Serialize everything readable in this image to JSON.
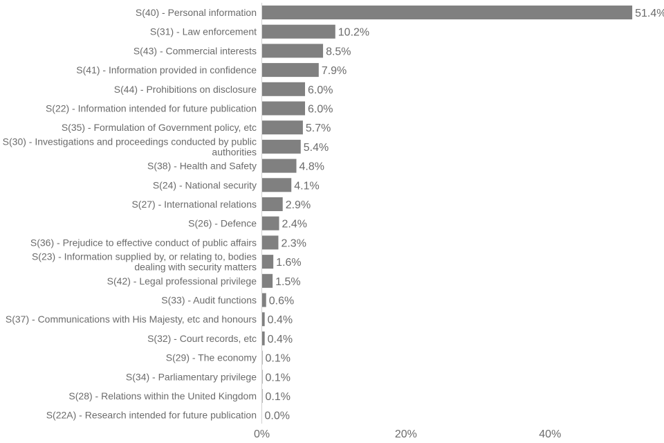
{
  "chart_data": {
    "type": "bar",
    "orientation": "horizontal",
    "categories": [
      "S(40) - Personal information",
      "S(31) - Law enforcement",
      "S(43) - Commercial interests",
      "S(41) - Information provided in confidence",
      "S(44) - Prohibitions on disclosure",
      "S(22) - Information intended for future publication",
      "S(35) - Formulation of Government policy, etc",
      "S(30) - Investigations and proceedings conducted by public authorities",
      "S(38) - Health and Safety",
      "S(24) - National security",
      "S(27) - International relations",
      "S(26) - Defence",
      "S(36) - Prejudice to effective conduct of public affairs",
      "S(23) - Information supplied by, or relating to, bodies dealing with security matters",
      "S(42) - Legal professional privilege",
      "S(33) - Audit functions",
      "S(37) - Communications with His Majesty, etc and honours",
      "S(32) - Court records, etc",
      "S(29) - The economy",
      "S(34) - Parliamentary privilege",
      "S(28) - Relations within the United Kingdom",
      "S(22A) - Research intended for future publication"
    ],
    "category_lines": [
      [
        "S(40) - Personal information"
      ],
      [
        "S(31) - Law enforcement"
      ],
      [
        "S(43) - Commercial interests"
      ],
      [
        "S(41) - Information provided in confidence"
      ],
      [
        "S(44) - Prohibitions on disclosure"
      ],
      [
        "S(22) - Information intended for future publication"
      ],
      [
        "S(35) - Formulation of Government policy, etc"
      ],
      [
        "S(30) - Investigations and proceedings conducted by public",
        "authorities"
      ],
      [
        "S(38) - Health and Safety"
      ],
      [
        "S(24) - National security"
      ],
      [
        "S(27) - International relations"
      ],
      [
        "S(26) - Defence"
      ],
      [
        "S(36) - Prejudice to effective conduct of public affairs"
      ],
      [
        "S(23) - Information supplied by, or relating to, bodies",
        "dealing with security matters"
      ],
      [
        "S(42) - Legal professional privilege"
      ],
      [
        "S(33) - Audit functions"
      ],
      [
        "S(37) - Communications with His Majesty, etc and honours"
      ],
      [
        "S(32) - Court records, etc"
      ],
      [
        "S(29) - The economy"
      ],
      [
        "S(34) - Parliamentary privilege"
      ],
      [
        "S(28) - Relations within the United Kingdom"
      ],
      [
        "S(22A) - Research intended for future publication"
      ]
    ],
    "values": [
      51.4,
      10.2,
      8.5,
      7.9,
      6.0,
      6.0,
      5.7,
      5.4,
      4.8,
      4.1,
      2.9,
      2.4,
      2.3,
      1.6,
      1.5,
      0.6,
      0.4,
      0.4,
      0.1,
      0.1,
      0.1,
      0.0
    ],
    "value_labels": [
      "51.4%",
      "10.2%",
      "8.5%",
      "7.9%",
      "6.0%",
      "6.0%",
      "5.7%",
      "5.4%",
      "4.8%",
      "4.1%",
      "2.9%",
      "2.4%",
      "2.3%",
      "1.6%",
      "1.5%",
      "0.6%",
      "0.4%",
      "0.4%",
      "0.1%",
      "0.1%",
      "0.1%",
      "0.0%"
    ],
    "xticks": [
      0,
      20,
      40
    ],
    "xtick_labels": [
      "0%",
      "20%",
      "40%"
    ],
    "xlim": [
      0,
      54
    ],
    "title": "",
    "xlabel": "",
    "ylabel": "",
    "grid": false,
    "legend": "none",
    "bar_color": "#808080",
    "text_color": "#6b6b6b",
    "axis_color": "#d0d0d0"
  }
}
